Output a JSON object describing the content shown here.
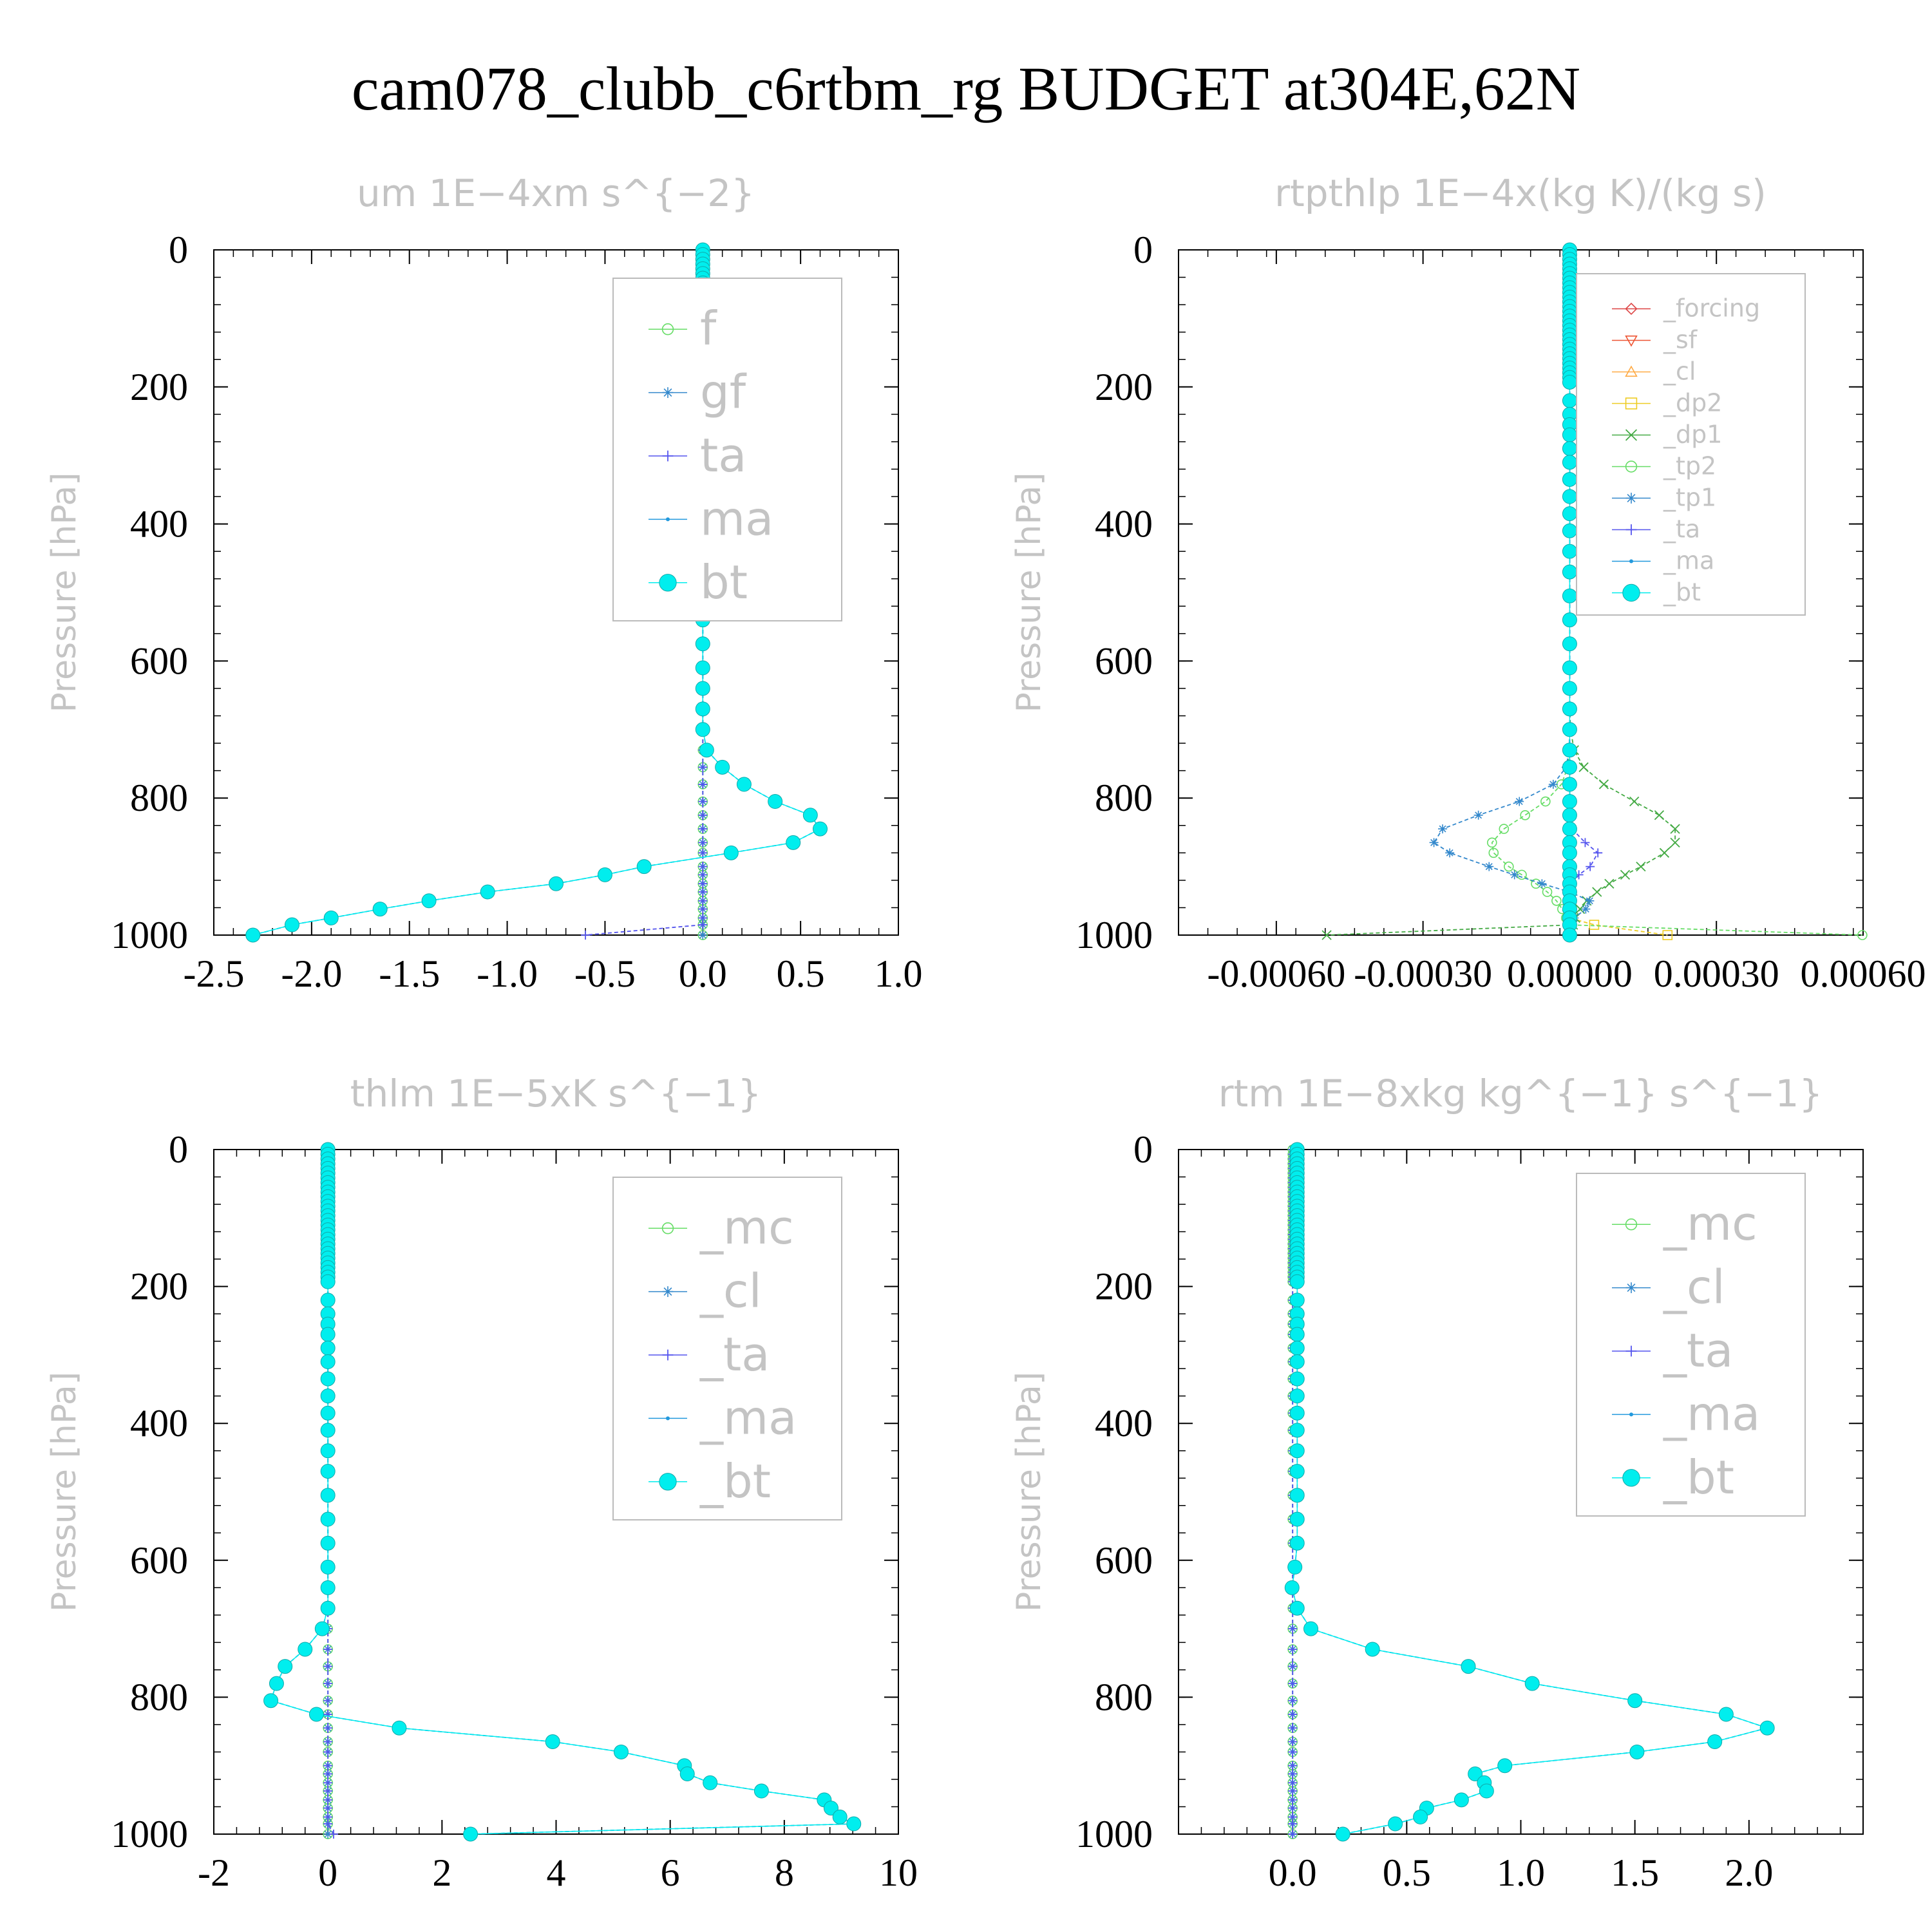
{
  "title": "cam078_clubb_c6rtbm_rg  BUDGET at304E,62N",
  "chart_data": [
    {
      "type": "line",
      "title": "um   1E−4xm  s^{−2}",
      "ylabel": "Pressure [hPa]",
      "xlim": [
        -2.5,
        1.0
      ],
      "ylim": [
        1000,
        0
      ],
      "yreverse": true,
      "xticks": [
        "-2.5",
        "-2.0",
        "-1.5",
        "-1.0",
        "-0.5",
        "0.0",
        "0.5",
        "1.0"
      ],
      "xtick_values": [
        -2.5,
        -2.0,
        -1.5,
        -1.0,
        -0.5,
        0.0,
        0.5,
        1.0
      ],
      "yticks": [
        "0",
        "200",
        "400",
        "600",
        "800",
        "1000"
      ],
      "ytick_values": [
        0,
        200,
        400,
        600,
        800,
        1000
      ],
      "legend_size": "large",
      "series": [
        {
          "name": "f",
          "color": "#66dd66",
          "marker": "circle",
          "profile": "zero"
        },
        {
          "name": "gf",
          "color": "#3388cc",
          "marker": "star",
          "profile": "zero"
        },
        {
          "name": "ta",
          "color": "#5555ee",
          "marker": "plus",
          "profile": "ta_um"
        },
        {
          "name": "ma",
          "color": "#2299dd",
          "marker": "dot",
          "profile": "bt"
        },
        {
          "name": "bt",
          "color": "#00eeee",
          "marker": "bigdot",
          "profile": "bt"
        }
      ],
      "bt_profile": [
        [
          -2.3,
          1000
        ],
        [
          -2.1,
          985
        ],
        [
          -1.9,
          975
        ],
        [
          -1.65,
          962
        ],
        [
          -1.4,
          950
        ],
        [
          -1.1,
          937
        ],
        [
          -0.75,
          925
        ],
        [
          -0.5,
          912
        ],
        [
          -0.3,
          900
        ],
        [
          -0.03,
          887
        ],
        [
          0.27,
          875
        ],
        [
          0.52,
          862
        ],
        [
          0.55,
          850
        ],
        [
          0.6,
          845
        ],
        [
          0.55,
          825
        ],
        [
          0.37,
          805
        ],
        [
          0.22,
          782
        ],
        [
          0.1,
          755
        ],
        [
          0.02,
          730
        ],
        [
          0.0,
          700
        ],
        [
          0.0,
          0
        ]
      ]
    },
    {
      "type": "line",
      "title": "rtpthlp   1E−4x(kg  K)/(kg  s)",
      "ylabel": "Pressure [hPa]",
      "xlim": [
        -0.0008,
        0.0006
      ],
      "ylim": [
        1000,
        0
      ],
      "yreverse": true,
      "xticks": [
        "-0.00060",
        "-0.00030",
        "0.00000",
        "0.00030",
        "0.00060"
      ],
      "xtick_values": [
        -0.0006,
        -0.0003,
        0.0,
        0.0003,
        0.0006
      ],
      "yticks": [
        "0",
        "200",
        "400",
        "600",
        "800",
        "1000"
      ],
      "ytick_values": [
        0,
        200,
        400,
        600,
        800,
        1000
      ],
      "legend_size": "small",
      "series": [
        {
          "name": "_forcing",
          "color": "#dd4444",
          "marker": "diamond",
          "profile": "zero"
        },
        {
          "name": "_sf",
          "color": "#ee5533",
          "marker": "tri-down",
          "profile": "zero"
        },
        {
          "name": "_cl",
          "color": "#ffaa44",
          "marker": "tri-up",
          "profile": "zero"
        },
        {
          "name": "_dp2",
          "color": "#eecc22",
          "marker": "square",
          "profile": "dp2"
        },
        {
          "name": "_dp1",
          "color": "#44aa44",
          "marker": "x",
          "profile": "dp1"
        },
        {
          "name": "_tp2",
          "color": "#66dd66",
          "marker": "circle",
          "profile": "tp2"
        },
        {
          "name": "_tp1",
          "color": "#3388cc",
          "marker": "star",
          "profile": "tp1"
        },
        {
          "name": "_ta",
          "color": "#5555ee",
          "marker": "plus",
          "profile": "ta2"
        },
        {
          "name": "_ma",
          "color": "#2299dd",
          "marker": "dot",
          "profile": "zero"
        },
        {
          "name": "_bt",
          "color": "#00eeee",
          "marker": "bigdot",
          "profile": "zero"
        }
      ]
    },
    {
      "type": "line",
      "title": "thlm   1E−5xK  s^{−1}",
      "ylabel": "Pressure [hPa]",
      "xlim": [
        -2,
        10
      ],
      "ylim": [
        1000,
        0
      ],
      "yreverse": true,
      "xticks": [
        "-2",
        "0",
        "2",
        "4",
        "6",
        "8",
        "10"
      ],
      "xtick_values": [
        -2,
        0,
        2,
        4,
        6,
        8,
        10
      ],
      "yticks": [
        "0",
        "200",
        "400",
        "600",
        "800",
        "1000"
      ],
      "ytick_values": [
        0,
        200,
        400,
        600,
        800,
        1000
      ],
      "legend_size": "large",
      "series": [
        {
          "name": "_mc",
          "color": "#66dd66",
          "marker": "circle",
          "profile": "zero"
        },
        {
          "name": "_cl",
          "color": "#3388cc",
          "marker": "star",
          "profile": "zero"
        },
        {
          "name": "_ta",
          "color": "#5555ee",
          "marker": "plus",
          "profile": "ta_th"
        },
        {
          "name": "_ma",
          "color": "#2299dd",
          "marker": "dot",
          "profile": "bt"
        },
        {
          "name": "_bt",
          "color": "#00eeee",
          "marker": "bigdot",
          "profile": "bt"
        }
      ],
      "bt_profile": [
        [
          2.5,
          1000
        ],
        [
          9.3,
          988
        ],
        [
          9.0,
          977
        ],
        [
          8.85,
          965
        ],
        [
          8.7,
          950
        ],
        [
          7.6,
          937
        ],
        [
          6.7,
          925
        ],
        [
          6.3,
          912
        ],
        [
          6.25,
          900
        ],
        [
          5.7,
          887
        ],
        [
          3.7,
          862
        ],
        [
          1.25,
          845
        ],
        [
          -0.2,
          825
        ],
        [
          -1.0,
          805
        ],
        [
          -0.9,
          780
        ],
        [
          -0.75,
          755
        ],
        [
          -0.4,
          730
        ],
        [
          -0.1,
          700
        ],
        [
          0.0,
          670
        ],
        [
          0.0,
          0
        ]
      ]
    },
    {
      "type": "line",
      "title": "rtm   1E−8xkg  kg^{−1}  s^{−1}",
      "ylabel": "Pressure [hPa]",
      "xlim": [
        -0.5,
        2.5
      ],
      "ylim": [
        1000,
        0
      ],
      "yreverse": true,
      "xticks": [
        "0.0",
        "0.5",
        "1.0",
        "1.5",
        "2.0"
      ],
      "xtick_values": [
        0.0,
        0.5,
        1.0,
        1.5,
        2.0
      ],
      "yticks": [
        "0",
        "200",
        "400",
        "600",
        "800",
        "1000"
      ],
      "ytick_values": [
        0,
        200,
        400,
        600,
        800,
        1000
      ],
      "legend_size": "large",
      "series": [
        {
          "name": "_mc",
          "color": "#66dd66",
          "marker": "circle",
          "profile": "zero"
        },
        {
          "name": "_cl",
          "color": "#3388cc",
          "marker": "star",
          "profile": "zero"
        },
        {
          "name": "_ta",
          "color": "#5555ee",
          "marker": "plus",
          "profile": "zero"
        },
        {
          "name": "_ma",
          "color": "#2299dd",
          "marker": "dot",
          "profile": "bt"
        },
        {
          "name": "_bt",
          "color": "#00eeee",
          "marker": "bigdot",
          "profile": "bt"
        }
      ],
      "bt_profile": [
        [
          0.22,
          1000
        ],
        [
          0.45,
          985
        ],
        [
          0.56,
          975
        ],
        [
          0.55,
          968
        ],
        [
          0.6,
          960
        ],
        [
          0.74,
          950
        ],
        [
          0.85,
          937
        ],
        [
          0.84,
          925
        ],
        [
          0.8,
          912
        ],
        [
          0.93,
          900
        ],
        [
          1.35,
          887
        ],
        [
          1.85,
          865
        ],
        [
          2.08,
          845
        ],
        [
          1.9,
          825
        ],
        [
          1.5,
          805
        ],
        [
          1.05,
          780
        ],
        [
          0.77,
          755
        ],
        [
          0.35,
          730
        ],
        [
          0.08,
          700
        ],
        [
          0.02,
          670
        ],
        [
          -0.01,
          630
        ],
        [
          0.02,
          600
        ],
        [
          0.02,
          0
        ]
      ]
    }
  ]
}
